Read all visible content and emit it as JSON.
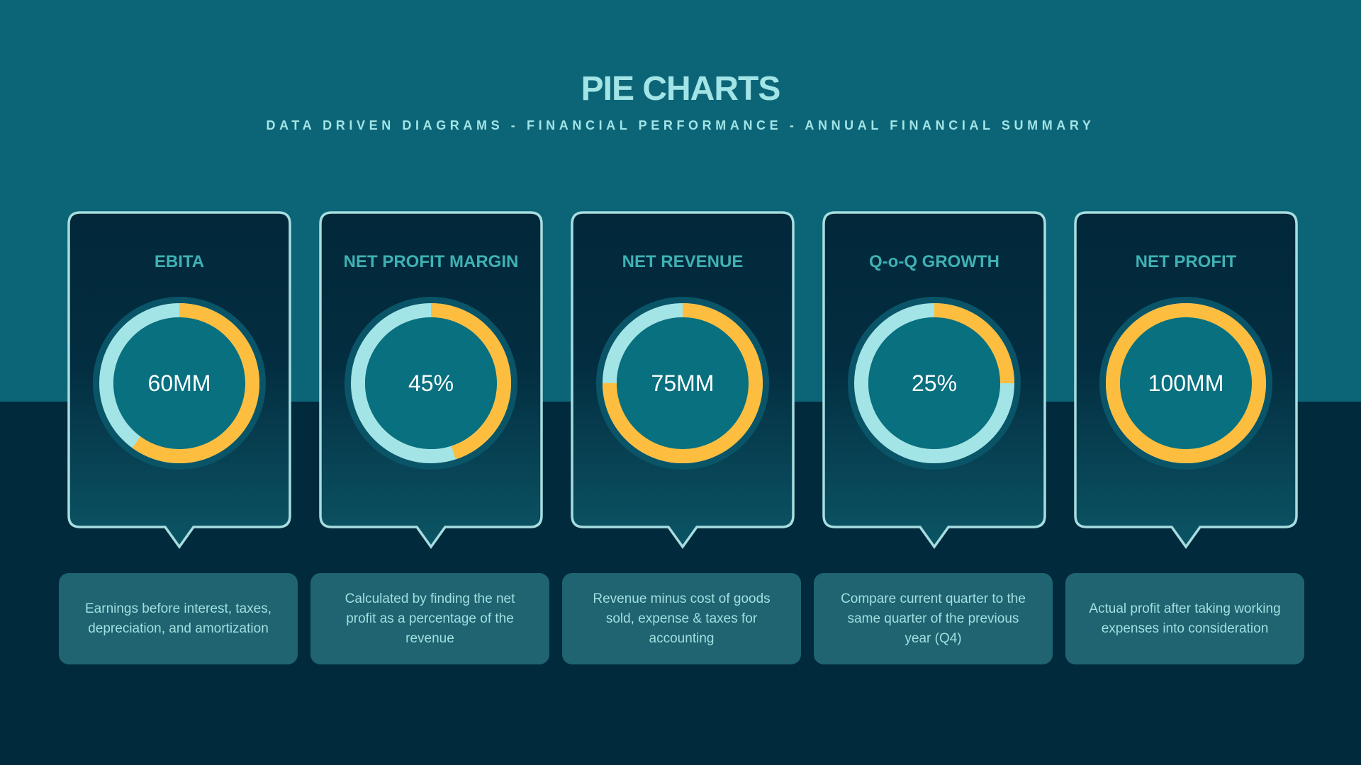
{
  "header": {
    "title": "PIE CHARTS",
    "subtitle": "DATA DRIVEN DIAGRAMS - FINANCIAL PERFORMANCE - ANNUAL FINANCIAL SUMMARY"
  },
  "colors": {
    "highlight": "#fdbe3f",
    "remainder": "#a3e4e6",
    "inner": "#08707f",
    "background_top": "#0c6577",
    "background_bottom": "#022a3d"
  },
  "chart_data": [
    {
      "type": "pie",
      "title": "EBITA",
      "label": "60MM",
      "percent": 60,
      "description": "Earnings before interest, taxes, depreciation, and amortization"
    },
    {
      "type": "pie",
      "title": "NET PROFIT MARGIN",
      "label": "45%",
      "percent": 45,
      "description": "Calculated by finding the net profit as a percentage of the revenue"
    },
    {
      "type": "pie",
      "title": "NET REVENUE",
      "label": "75MM",
      "percent": 75,
      "description": "Revenue minus cost of goods sold, expense & taxes for accounting"
    },
    {
      "type": "pie",
      "title": "Q-o-Q GROWTH",
      "label": "25%",
      "percent": 25,
      "description": "Compare current quarter to the same quarter of the previous year (Q4)"
    },
    {
      "type": "pie",
      "title": "NET PROFIT",
      "label": "100MM",
      "percent": 100,
      "description": "Actual profit after taking working expenses into consideration"
    }
  ]
}
